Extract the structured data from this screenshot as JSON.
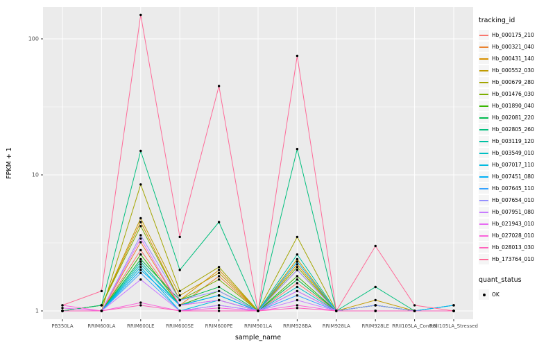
{
  "chart_data": {
    "type": "line",
    "title": "",
    "xlabel": "sample_name",
    "ylabel": "FPKM + 1",
    "yscale": "log10",
    "ylim": [
      1,
      171
    ],
    "yticks": [
      1,
      10,
      100
    ],
    "minor_ticks": [
      3.1623,
      31.623
    ],
    "grid": true,
    "panel_color": "#EBEBEB",
    "grid_color": "#FFFFFF",
    "tick_text_color": "#4D4D4D",
    "point_color": "#000000",
    "legend_position": "right",
    "legend_title": "tracking_id",
    "quant_legend": {
      "title": "quant_status",
      "items": [
        {
          "label": "OK",
          "marker": "point"
        }
      ]
    },
    "categories": [
      "PB350LA",
      "RRIM600LA",
      "RRIM600LE",
      "RRIM600SE",
      "RRIM600PE",
      "RRIM901LA",
      "RRIM928BA",
      "RRIM928LA",
      "RRIM928LE",
      "RRII105LA_Control",
      "RRII105LA_Stressed"
    ],
    "series": [
      {
        "name": "Hb_000175_210",
        "color": "#F8766D",
        "values": [
          1.0,
          1.0,
          2.8,
          1.1,
          1.3,
          1.0,
          1.6,
          1.0,
          1.0,
          1.0,
          1.0
        ]
      },
      {
        "name": "Hb_000321_040",
        "color": "#EA8331",
        "values": [
          1.0,
          1.0,
          3.2,
          1.1,
          1.8,
          1.0,
          2.0,
          1.0,
          1.1,
          1.0,
          1.0
        ]
      },
      {
        "name": "Hb_000431_140",
        "color": "#D89000",
        "values": [
          1.0,
          1.1,
          4.5,
          1.2,
          2.0,
          1.0,
          2.2,
          1.0,
          1.1,
          1.0,
          1.0
        ]
      },
      {
        "name": "Hb_000552_030",
        "color": "#C09B00",
        "values": [
          1.0,
          1.1,
          4.8,
          1.3,
          1.9,
          1.0,
          2.4,
          1.0,
          1.2,
          1.0,
          1.0
        ]
      },
      {
        "name": "Hb_000679_280",
        "color": "#A3A500",
        "values": [
          1.0,
          1.0,
          8.5,
          1.4,
          2.1,
          1.0,
          3.5,
          1.0,
          1.1,
          1.0,
          1.0
        ]
      },
      {
        "name": "Hb_001476_030",
        "color": "#7CAE00",
        "values": [
          1.0,
          1.1,
          4.2,
          1.2,
          1.7,
          1.0,
          2.1,
          1.0,
          1.1,
          1.0,
          1.0
        ]
      },
      {
        "name": "Hb_001890_040",
        "color": "#39B600",
        "values": [
          1.0,
          1.0,
          2.6,
          1.1,
          1.4,
          1.0,
          1.8,
          1.0,
          1.0,
          1.0,
          1.0
        ]
      },
      {
        "name": "Hb_002081_220",
        "color": "#00BB4E",
        "values": [
          1.0,
          1.0,
          2.4,
          1.2,
          1.5,
          1.0,
          1.7,
          1.0,
          1.1,
          1.0,
          1.0
        ]
      },
      {
        "name": "Hb_002805_260",
        "color": "#00BF7D",
        "values": [
          1.0,
          1.1,
          15.0,
          2.0,
          4.5,
          1.0,
          15.5,
          1.0,
          1.5,
          1.0,
          1.1
        ]
      },
      {
        "name": "Hb_003119_120",
        "color": "#00C1A3",
        "values": [
          1.0,
          1.0,
          2.3,
          1.1,
          1.3,
          1.0,
          2.6,
          1.0,
          1.1,
          1.0,
          1.0
        ]
      },
      {
        "name": "Hb_003549_010",
        "color": "#00BFC4",
        "values": [
          1.0,
          1.0,
          2.2,
          1.1,
          1.2,
          1.0,
          1.5,
          1.0,
          1.0,
          1.0,
          1.1
        ]
      },
      {
        "name": "Hb_007017_110",
        "color": "#00BAE0",
        "values": [
          1.0,
          1.0,
          2.1,
          1.0,
          1.2,
          1.0,
          1.4,
          1.0,
          1.0,
          1.0,
          1.0
        ]
      },
      {
        "name": "Hb_007451_080",
        "color": "#00B0F6",
        "values": [
          1.0,
          1.0,
          2.0,
          1.1,
          1.3,
          1.0,
          2.3,
          1.0,
          1.0,
          1.0,
          1.1
        ]
      },
      {
        "name": "Hb_007645_110",
        "color": "#35A2FF",
        "values": [
          1.0,
          1.0,
          1.9,
          1.0,
          1.1,
          1.0,
          1.3,
          1.0,
          1.0,
          1.0,
          1.0
        ]
      },
      {
        "name": "Hb_007654_010",
        "color": "#9590FF",
        "values": [
          1.0,
          1.0,
          3.6,
          1.2,
          1.4,
          1.0,
          2.0,
          1.0,
          1.1,
          1.0,
          1.0
        ]
      },
      {
        "name": "Hb_007951_080",
        "color": "#C77CFF",
        "values": [
          1.0,
          1.0,
          1.7,
          1.0,
          1.1,
          1.0,
          1.2,
          1.0,
          1.0,
          1.0,
          1.0
        ]
      },
      {
        "name": "Hb_021943_010",
        "color": "#E76BF3",
        "values": [
          1.05,
          1.0,
          3.4,
          1.1,
          1.2,
          1.0,
          1.4,
          1.0,
          1.0,
          1.0,
          1.0
        ]
      },
      {
        "name": "Hb_027028_010",
        "color": "#FA62DB",
        "values": [
          1.1,
          1.0,
          1.15,
          1.0,
          1.05,
          1.0,
          1.1,
          1.0,
          1.0,
          1.0,
          1.0
        ]
      },
      {
        "name": "Hb_028013_030",
        "color": "#FF62BC",
        "values": [
          1.0,
          1.0,
          1.1,
          1.0,
          1.0,
          1.0,
          1.05,
          1.0,
          1.0,
          1.0,
          1.0
        ]
      },
      {
        "name": "Hb_173764_010",
        "color": "#FF6A98",
        "values": [
          1.1,
          1.4,
          150.0,
          3.5,
          45.0,
          1.0,
          75.0,
          1.0,
          3.0,
          1.1,
          1.0
        ]
      }
    ]
  }
}
